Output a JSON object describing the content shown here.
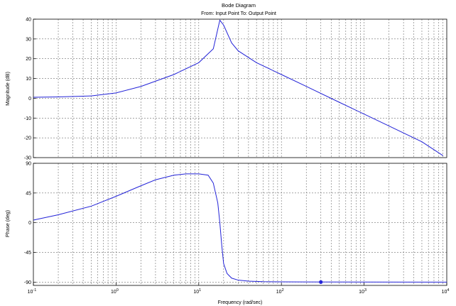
{
  "header": {
    "title": "Bode Diagram",
    "subtitle": "From: Input Point  To: Output Point"
  },
  "chart_data": {
    "type": "line",
    "title": "Bode Diagram",
    "subtitle": "From: Input Point  To: Output Point",
    "xlabel": "Frequency  (rad/sec)",
    "xscale": "log",
    "xlim": [
      0.1,
      10000
    ],
    "grid": true,
    "line_color": "#2323d8",
    "xticks": [
      {
        "base": "10",
        "exp": "-1"
      },
      {
        "base": "10",
        "exp": "0"
      },
      {
        "base": "10",
        "exp": "1"
      },
      {
        "base": "10",
        "exp": "2"
      },
      {
        "base": "10",
        "exp": "3"
      },
      {
        "base": "10",
        "exp": "4"
      }
    ],
    "panels": [
      {
        "name": "magnitude",
        "ylabel": "Magnitude (dB)",
        "ylim": [
          -30,
          40
        ],
        "yticks": [
          "40",
          "30",
          "20",
          "10",
          "0",
          "-10",
          "-20",
          "-30"
        ],
        "series": [
          {
            "x": [
              0.1,
              0.2,
              0.5,
              1,
              2,
              5,
              10,
              15,
              18,
              20,
              25,
              30,
              50,
              100,
              200,
              500,
              1000,
              2000,
              5000,
              9000
            ],
            "y": [
              0.5,
              0.7,
              1.2,
              2.7,
              6,
              12,
              18,
              25,
              39.5,
              37,
              28,
              24,
              18,
              12,
              6,
              -2,
              -8,
              -14,
              -22,
              -29
            ]
          }
        ]
      },
      {
        "name": "phase",
        "ylabel": "Phase (deg)",
        "ylim": [
          -95,
          90
        ],
        "yticks": [
          "90",
          "45",
          "0",
          "-45",
          "-90"
        ],
        "series": [
          {
            "x": [
              0.1,
              0.2,
              0.5,
              1,
              2,
              3,
              5,
              7,
              10,
              13,
              15,
              17,
              18,
              19,
              20,
              22,
              25,
              30,
              40,
              60,
              100,
              200,
              1000,
              10000
            ],
            "y": [
              4,
              12,
              25,
              40,
              56,
              65,
              72,
              74,
              74,
              72,
              60,
              30,
              0,
              -35,
              -62,
              -77,
              -84,
              -87,
              -88.5,
              -89.3,
              -89.6,
              -89.8,
              -89.9,
              -90
            ]
          }
        ],
        "marker": {
          "x": 300,
          "y": -89.9
        }
      }
    ]
  }
}
